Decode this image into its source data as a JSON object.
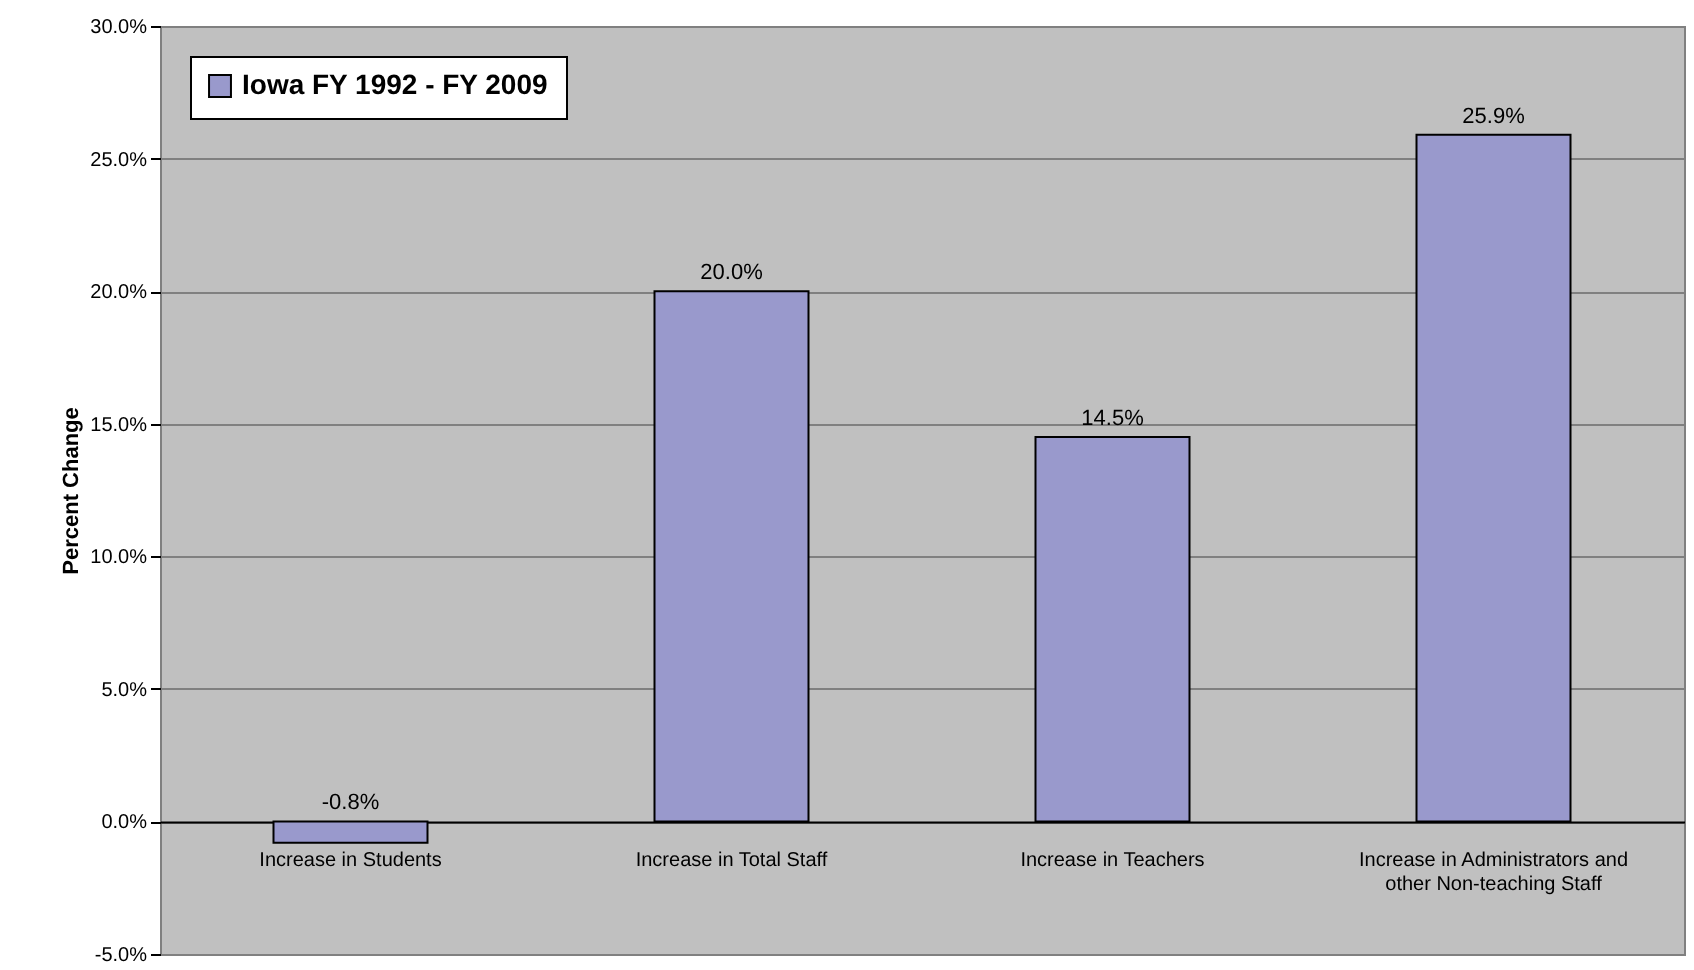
{
  "chart_data": {
    "type": "bar",
    "categories": [
      "Increase in Students",
      "Increase in Total Staff",
      "Increase in Teachers",
      "Increase in Administrators and other Non-teaching Staff"
    ],
    "series": [
      {
        "name": "Iowa FY 1992 - FY 2009",
        "color": "#9999cc",
        "values": [
          -0.8,
          20.0,
          14.5,
          25.9
        ],
        "value_labels": [
          "-0.8%",
          "20.0%",
          "14.5%",
          "25.9%"
        ]
      }
    ],
    "ylabel": "Percent Change",
    "ylim": [
      -5,
      30
    ],
    "yticks": [
      {
        "value": -5,
        "label": "-5.0%"
      },
      {
        "value": 0,
        "label": "0.0%"
      },
      {
        "value": 5,
        "label": "5.0%"
      },
      {
        "value": 10,
        "label": "10.0%"
      },
      {
        "value": 15,
        "label": "15.0%"
      },
      {
        "value": 20,
        "label": "20.0%"
      },
      {
        "value": 25,
        "label": "25.0%"
      },
      {
        "value": 30,
        "label": "30.0%"
      }
    ],
    "grid": "y",
    "legend": "top left"
  }
}
